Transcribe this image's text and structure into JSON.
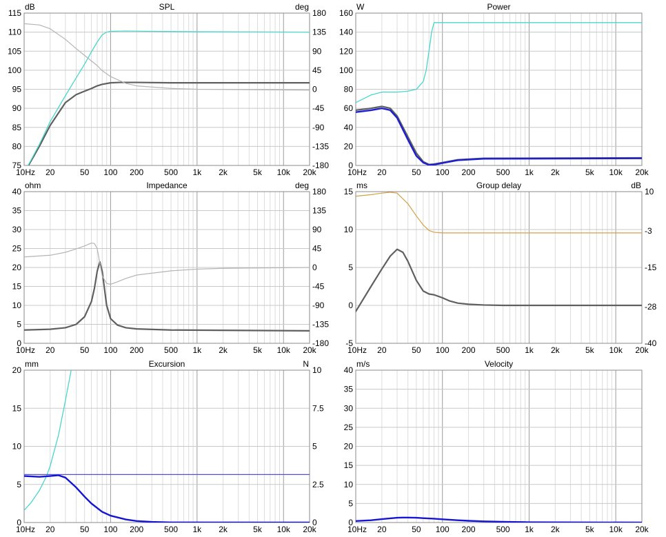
{
  "chart_data": [
    {
      "type": "line",
      "title": "SPL",
      "ylabel": "dB",
      "y2label": "deg",
      "x_scale": "log",
      "xlim": [
        10,
        20000
      ],
      "xticks": [
        "10Hz",
        "20",
        "50",
        "100",
        "200",
        "500",
        "1k",
        "2k",
        "5k",
        "10k",
        "20k"
      ],
      "ylim": [
        75,
        115
      ],
      "yticks": [
        "75",
        "80",
        "85",
        "90",
        "95",
        "100",
        "105",
        "110",
        "115"
      ],
      "y2lim": [
        -180,
        180
      ],
      "y2ticks": [
        "-180",
        "-135",
        "-90",
        "-45",
        "0",
        "45",
        "90",
        "135",
        "180"
      ],
      "grid": true,
      "series": [
        {
          "axis": "left",
          "color": "#5f5f5f",
          "width": 2.2,
          "x": [
            10,
            15,
            20,
            30,
            40,
            50,
            60,
            70,
            80,
            100,
            130,
            200,
            500,
            20000
          ],
          "y": [
            73,
            80,
            85.5,
            91.5,
            93.6,
            94.5,
            95.2,
            95.9,
            96.3,
            96.7,
            96.8,
            96.8,
            96.7,
            96.7
          ]
        },
        {
          "axis": "left",
          "color": "#48d6cc",
          "width": 1.3,
          "x": [
            10,
            15,
            20,
            30,
            40,
            50,
            60,
            70,
            80,
            90,
            100,
            150,
            300,
            1000,
            20000
          ],
          "y": [
            73,
            80.5,
            86.5,
            93.3,
            98,
            101.6,
            104.8,
            107.4,
            109.3,
            110,
            110.2,
            110.3,
            110.2,
            110.1,
            110
          ]
        },
        {
          "axis": "right",
          "color": "#b4b4b4",
          "width": 1.2,
          "x": [
            10,
            15,
            20,
            30,
            40,
            50,
            60,
            70,
            80,
            100,
            150,
            200,
            500,
            1000,
            20000
          ],
          "y": [
            155,
            152,
            143,
            118,
            96,
            80,
            67,
            56,
            44,
            30,
            14,
            8,
            2,
            0,
            -2
          ]
        }
      ]
    },
    {
      "type": "line",
      "title": "Power",
      "ylabel": "W",
      "x_scale": "log",
      "xlim": [
        10,
        20000
      ],
      "xticks": [
        "10Hz",
        "20",
        "50",
        "100",
        "200",
        "500",
        "1k",
        "2k",
        "5k",
        "10k",
        "20k"
      ],
      "ylim": [
        0,
        160
      ],
      "yticks": [
        "0",
        "20",
        "40",
        "60",
        "80",
        "100",
        "120",
        "140",
        "160"
      ],
      "grid": true,
      "series": [
        {
          "color": "#48d6cc",
          "width": 1.3,
          "x": [
            10,
            15,
            20,
            30,
            40,
            50,
            60,
            65,
            70,
            75,
            80,
            90,
            20000
          ],
          "y": [
            66,
            74,
            77,
            77,
            78,
            80,
            88,
            100,
            120,
            140,
            150,
            150,
            150
          ]
        },
        {
          "color": "#5f5f5f",
          "width": 2.2,
          "x": [
            10,
            15,
            20,
            25,
            30,
            40,
            50,
            60,
            70,
            80,
            100,
            150,
            300,
            20000
          ],
          "y": [
            58,
            60,
            62,
            60,
            52,
            30,
            13,
            4,
            1,
            1.5,
            3,
            6,
            7.5,
            8
          ]
        },
        {
          "color": "#1e1ed2",
          "width": 2.4,
          "x": [
            10,
            15,
            20,
            25,
            30,
            40,
            50,
            60,
            70,
            80,
            100,
            150,
            300,
            20000
          ],
          "y": [
            56,
            58,
            60,
            58,
            50,
            27,
            10,
            3,
            0.5,
            0.8,
            2.5,
            5.5,
            7,
            7.5
          ]
        }
      ]
    },
    {
      "type": "line",
      "title": "Impedance",
      "ylabel": "ohm",
      "y2label": "deg",
      "x_scale": "log",
      "xlim": [
        10,
        20000
      ],
      "xticks": [
        "10Hz",
        "20",
        "50",
        "100",
        "200",
        "500",
        "1k",
        "2k",
        "5k",
        "10k",
        "20k"
      ],
      "ylim": [
        0,
        40
      ],
      "yticks": [
        "0",
        "5",
        "10",
        "15",
        "20",
        "25",
        "30",
        "35",
        "40"
      ],
      "y2lim": [
        -180,
        180
      ],
      "y2ticks": [
        "-180",
        "-135",
        "-90",
        "-45",
        "0",
        "45",
        "90",
        "135",
        "180"
      ],
      "grid": true,
      "series": [
        {
          "axis": "left",
          "color": "#5f5f5f",
          "width": 2.2,
          "x": [
            10,
            20,
            30,
            40,
            50,
            60,
            65,
            70,
            75,
            80,
            90,
            100,
            120,
            150,
            200,
            500,
            20000
          ],
          "y": [
            3.5,
            3.7,
            4.1,
            5,
            7,
            11,
            14.5,
            19,
            21.5,
            19,
            10,
            6.5,
            4.8,
            4.1,
            3.8,
            3.5,
            3.3
          ]
        },
        {
          "axis": "right",
          "color": "#b4b4b4",
          "width": 1.2,
          "x": [
            10,
            20,
            30,
            40,
            50,
            60,
            65,
            70,
            75,
            80,
            90,
            100,
            120,
            150,
            200,
            500,
            1000,
            2000,
            20000
          ],
          "y": [
            25,
            29,
            36,
            44,
            51,
            58,
            57,
            45,
            10,
            -20,
            -38,
            -40,
            -34,
            -26,
            -18,
            -8,
            -4,
            -2,
            0
          ]
        }
      ]
    },
    {
      "type": "line",
      "title": "Group delay",
      "ylabel": "ms",
      "y2label": "dB",
      "x_scale": "log",
      "xlim": [
        10,
        20000
      ],
      "xticks": [
        "10Hz",
        "20",
        "50",
        "100",
        "200",
        "500",
        "1k",
        "2k",
        "5k",
        "10k",
        "20k"
      ],
      "ylim": [
        -5,
        15
      ],
      "yticks": [
        "-5",
        "0",
        "5",
        "10",
        "15"
      ],
      "y2lim": [
        -40,
        10
      ],
      "y2ticks": [
        "-40",
        "-28",
        "-15",
        "-3",
        "10"
      ],
      "grid": true,
      "series": [
        {
          "axis": "left",
          "color": "#5f5f5f",
          "width": 2.2,
          "x": [
            10,
            15,
            20,
            25,
            30,
            35,
            40,
            50,
            60,
            70,
            80,
            100,
            120,
            150,
            200,
            300,
            500,
            20000
          ],
          "y": [
            -0.8,
            2.5,
            4.8,
            6.5,
            7.4,
            7,
            5.8,
            3.3,
            1.9,
            1.5,
            1.4,
            1,
            0.6,
            0.3,
            0.15,
            0.05,
            0,
            0
          ]
        },
        {
          "axis": "right",
          "color": "#d2a046",
          "width": 1.2,
          "x": [
            10,
            15,
            20,
            25,
            30,
            40,
            50,
            60,
            70,
            80,
            100,
            150,
            300,
            20000
          ],
          "y": [
            8.5,
            9,
            9.5,
            9.8,
            9.5,
            6,
            2,
            -1,
            -2.8,
            -3.4,
            -3.6,
            -3.6,
            -3.6,
            -3.6
          ]
        }
      ]
    },
    {
      "type": "line",
      "title": "Excursion",
      "ylabel": "mm",
      "y2label": "N",
      "x_scale": "log",
      "xlim": [
        10,
        20000
      ],
      "xticks": [
        "10Hz",
        "20",
        "50",
        "100",
        "200",
        "500",
        "1k",
        "2k",
        "5k",
        "10k",
        "20k"
      ],
      "ylim": [
        0,
        20
      ],
      "yticks": [
        "0",
        "5",
        "10",
        "15",
        "20"
      ],
      "y2lim": [
        0,
        10
      ],
      "y2ticks": [
        "0",
        "2.5",
        "5",
        "7.5",
        "10"
      ],
      "grid": true,
      "series": [
        {
          "axis": "left",
          "color": "#48d6cc",
          "width": 1.3,
          "x": [
            10,
            12,
            15,
            18,
            20,
            25,
            30,
            35,
            40
          ],
          "y": [
            1.6,
            2.6,
            4.2,
            6,
            7.4,
            11.5,
            16,
            20,
            24
          ]
        },
        {
          "axis": "left",
          "color": "#5050dc",
          "width": 1.2,
          "x": [
            10,
            20000
          ],
          "y": [
            6.3,
            6.3
          ]
        },
        {
          "axis": "left",
          "color": "#1414d2",
          "width": 2.4,
          "x": [
            10,
            15,
            20,
            25,
            30,
            40,
            50,
            60,
            80,
            100,
            150,
            200,
            300,
            500,
            20000
          ],
          "y": [
            6.1,
            6,
            6.1,
            6.2,
            5.9,
            4.6,
            3.4,
            2.5,
            1.4,
            0.9,
            0.4,
            0.2,
            0.08,
            0.02,
            0
          ]
        }
      ]
    },
    {
      "type": "line",
      "title": "Velocity",
      "ylabel": "m/s",
      "x_scale": "log",
      "xlim": [
        10,
        20000
      ],
      "xticks": [
        "10Hz",
        "20",
        "50",
        "100",
        "200",
        "500",
        "1k",
        "2k",
        "5k",
        "10k",
        "20k"
      ],
      "ylim": [
        0,
        40
      ],
      "yticks": [
        "0",
        "5",
        "10",
        "15",
        "20",
        "25",
        "30",
        "35",
        "40"
      ],
      "grid": true,
      "series": [
        {
          "color": "#1414d2",
          "width": 2.4,
          "x": [
            10,
            15,
            20,
            25,
            30,
            35,
            40,
            50,
            60,
            80,
            100,
            150,
            200,
            300,
            500,
            1000,
            20000
          ],
          "y": [
            0.4,
            0.6,
            0.9,
            1.1,
            1.25,
            1.3,
            1.3,
            1.25,
            1.15,
            1,
            0.85,
            0.6,
            0.45,
            0.3,
            0.18,
            0.08,
            0
          ]
        }
      ]
    }
  ]
}
